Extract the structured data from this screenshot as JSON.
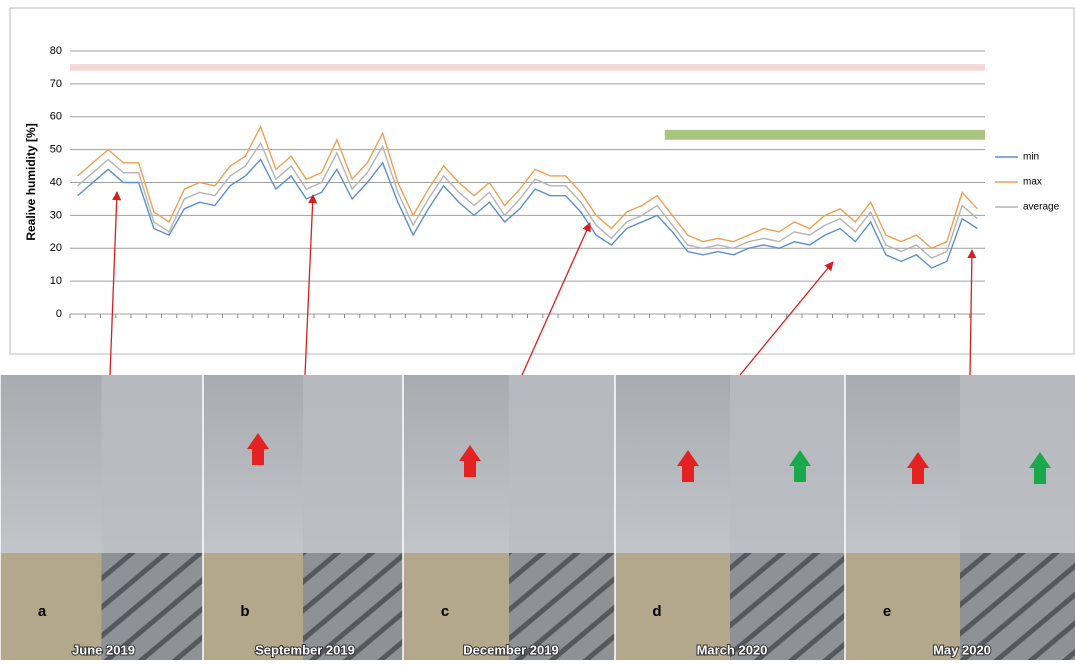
{
  "chart_data": {
    "type": "line",
    "y_label": "Realive humidity [%]",
    "categories": [
      null,
      null,
      null,
      null,
      null,
      null,
      null,
      null,
      null,
      null,
      null,
      null,
      null,
      null,
      null,
      null,
      null,
      null,
      null,
      null,
      null,
      null,
      null,
      null,
      null,
      null,
      null,
      null,
      null,
      null,
      null,
      null,
      null,
      null,
      null,
      null,
      null,
      null,
      null,
      null,
      null,
      null,
      null,
      null,
      null,
      null,
      null,
      null,
      null,
      null,
      null,
      null,
      null,
      null,
      null,
      null,
      null,
      null,
      null,
      null
    ],
    "series": [
      {
        "name": "min",
        "color": "#5b8fd0",
        "values": [
          36,
          40,
          44,
          40,
          40,
          26,
          24,
          32,
          34,
          33,
          39,
          42,
          47,
          38,
          42,
          35,
          37,
          44,
          35,
          40,
          46,
          34,
          24,
          32,
          39,
          34,
          30,
          34,
          28,
          32,
          38,
          36,
          36,
          31,
          24,
          21,
          26,
          28,
          30,
          25,
          19,
          18,
          19,
          18,
          20,
          21,
          20,
          22,
          21,
          24,
          26,
          22,
          28,
          18,
          16,
          18,
          14,
          16,
          29,
          26
        ]
      },
      {
        "name": "max",
        "color": "#f0a050",
        "values": [
          42,
          46,
          50,
          46,
          46,
          31,
          28,
          38,
          40,
          39,
          45,
          48,
          57,
          44,
          48,
          41,
          43,
          53,
          41,
          46,
          55,
          40,
          30,
          38,
          45,
          40,
          36,
          40,
          33,
          38,
          44,
          42,
          42,
          37,
          30,
          26,
          31,
          33,
          36,
          30,
          24,
          22,
          23,
          22,
          24,
          26,
          25,
          28,
          26,
          30,
          32,
          28,
          34,
          24,
          22,
          24,
          20,
          22,
          37,
          32
        ]
      },
      {
        "name": "average",
        "color": "#b4b4b4",
        "values": [
          39,
          43,
          47,
          43,
          43,
          28,
          25,
          35,
          37,
          36,
          42,
          45,
          52,
          41,
          45,
          38,
          40,
          49,
          38,
          43,
          51,
          37,
          27,
          35,
          42,
          37,
          33,
          37,
          30,
          35,
          41,
          39,
          39,
          34,
          27,
          23,
          28,
          30,
          33,
          27,
          21,
          20,
          21,
          20,
          22,
          23,
          22,
          25,
          24,
          27,
          29,
          25,
          31,
          21,
          19,
          21,
          17,
          19,
          33,
          29
        ]
      }
    ],
    "bands": [
      {
        "ymin": 74,
        "ymax": 76,
        "start": 0,
        "end": 59,
        "color": "#f2d9d6"
      },
      {
        "ymin": 53,
        "ymax": 56,
        "start": 39,
        "end": 59,
        "color": "#a9c47f"
      }
    ],
    "ylim": [
      0,
      80
    ],
    "yticks": [
      0,
      10,
      20,
      30,
      40,
      50,
      60,
      70,
      80
    ],
    "grid": true
  },
  "panels": [
    {
      "letter": "a",
      "date": "June 2019"
    },
    {
      "letter": "b",
      "date": "September 2019"
    },
    {
      "letter": "c",
      "date": "December 2019"
    },
    {
      "letter": "d",
      "date": "March 2020"
    },
    {
      "letter": "e",
      "date": "May 2020"
    }
  ]
}
